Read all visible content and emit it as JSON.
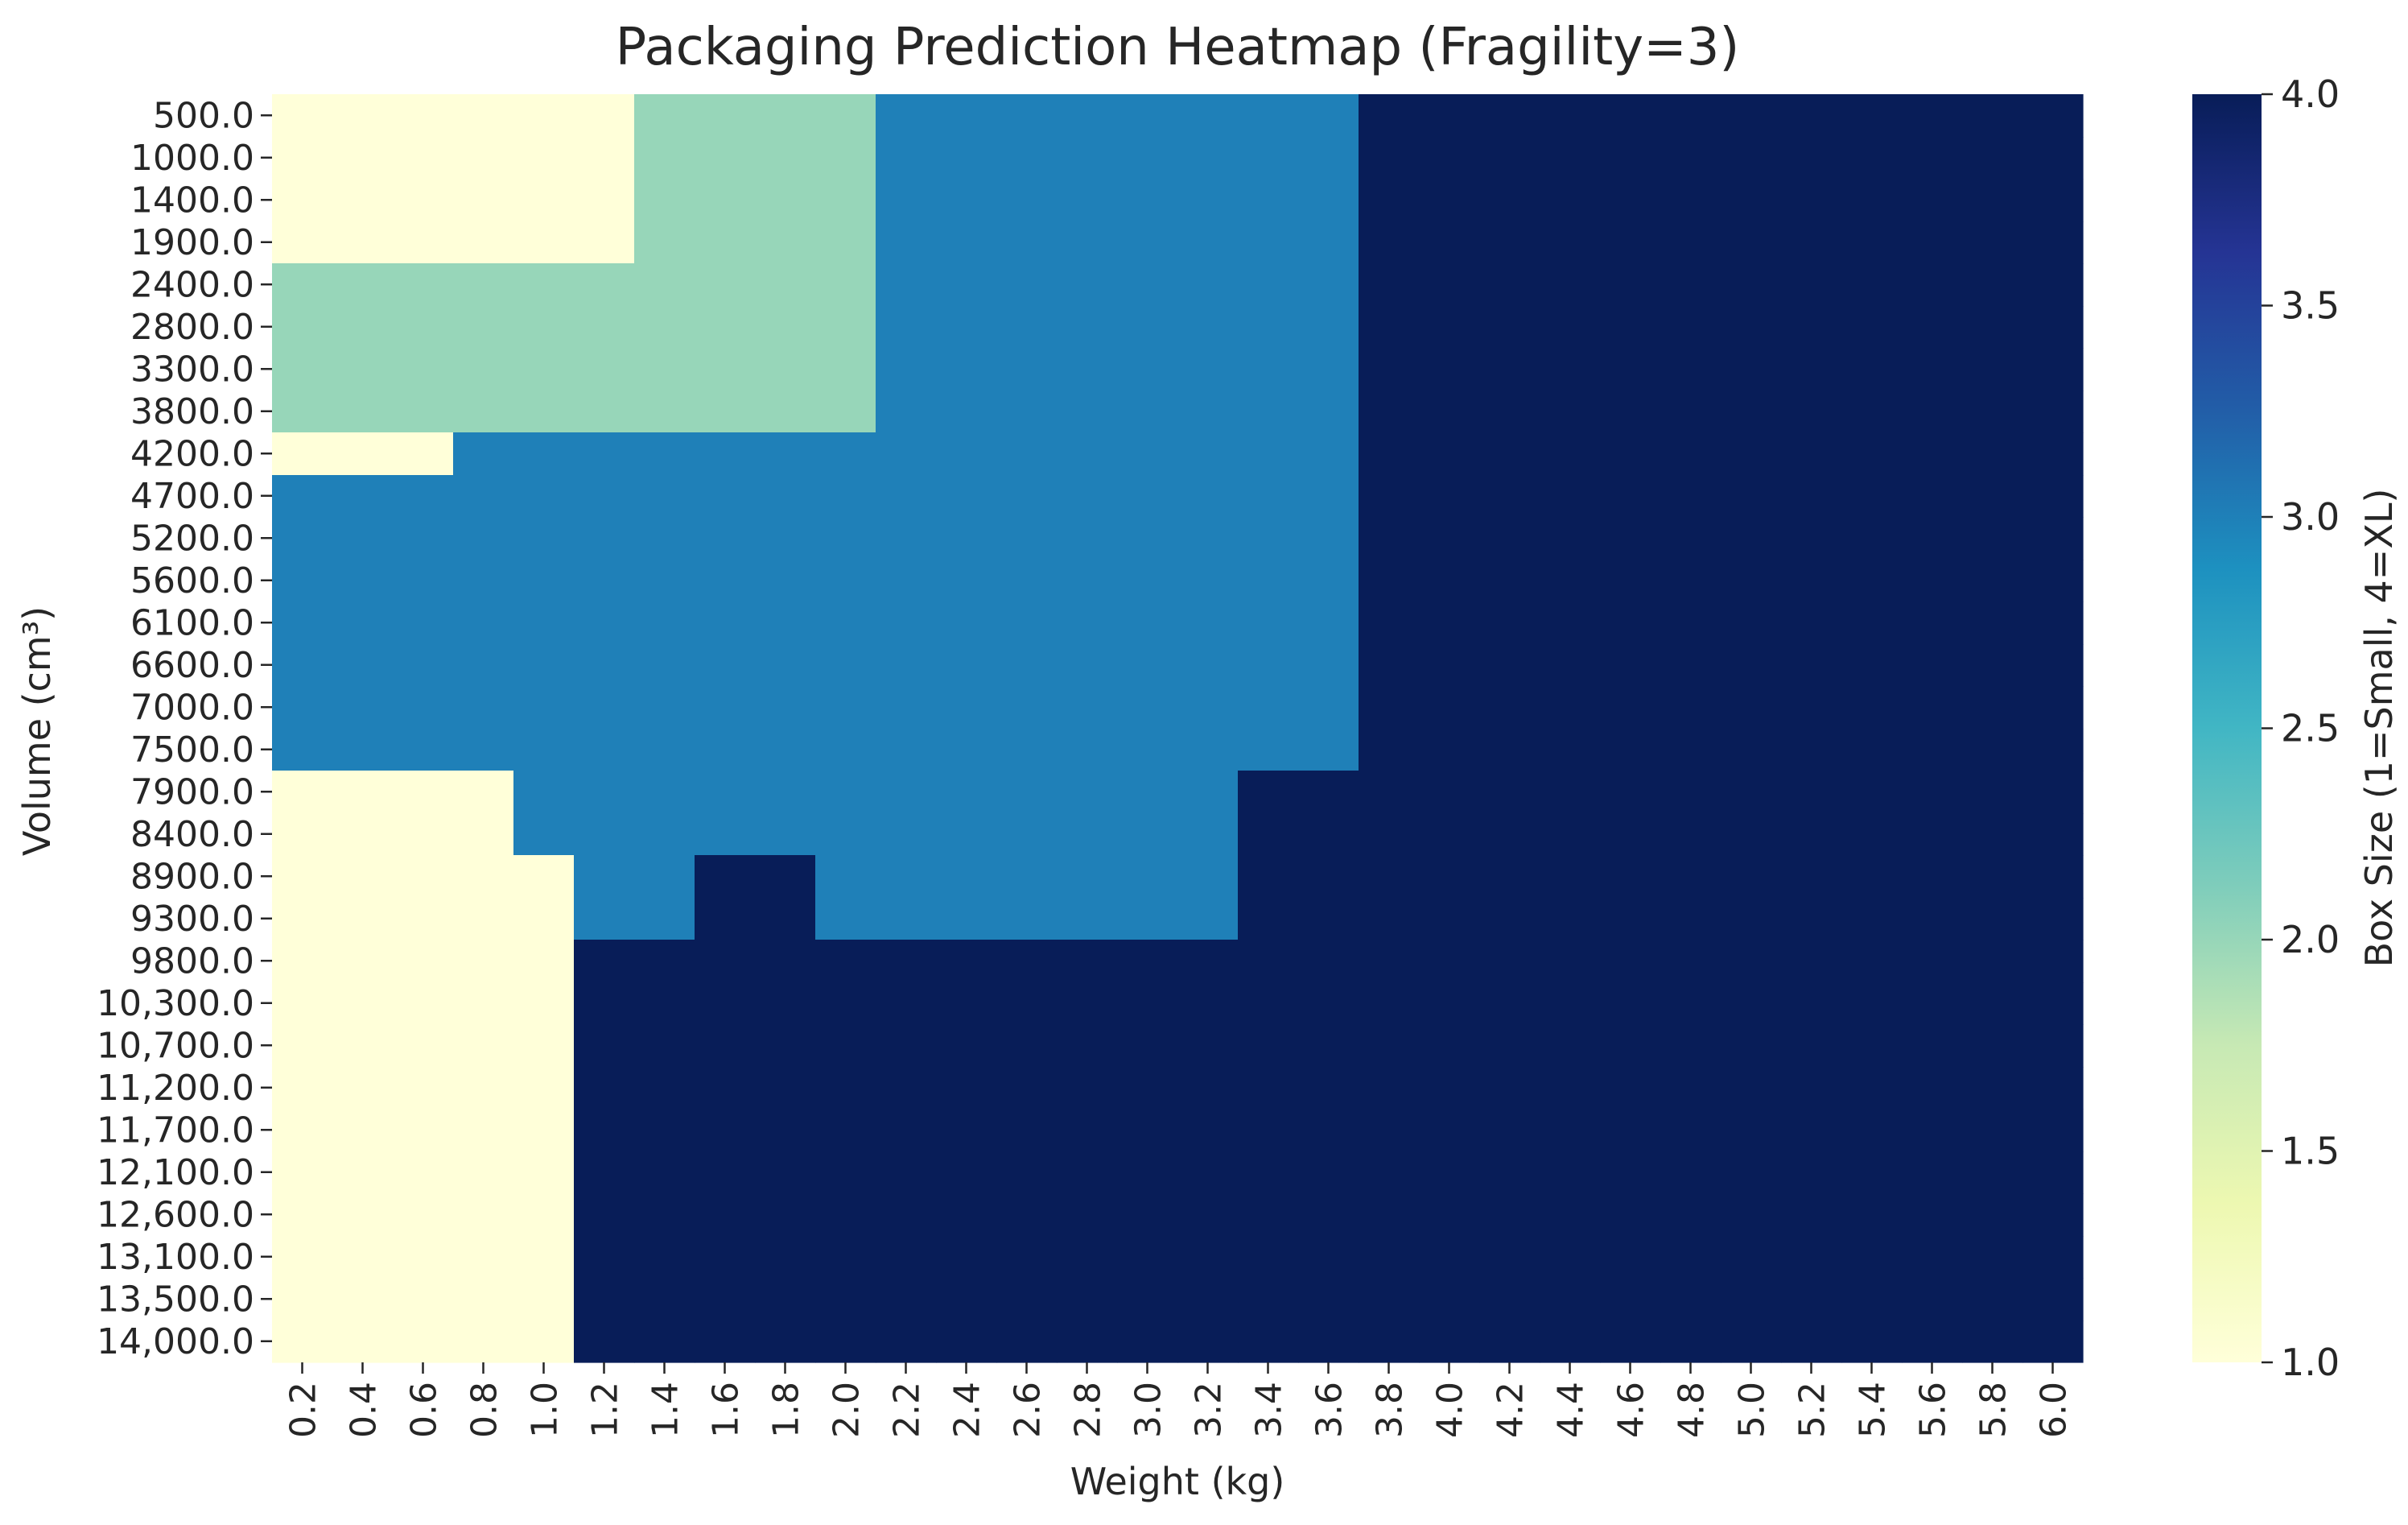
{
  "chart_data": {
    "type": "heatmap",
    "title": "Packaging Prediction Heatmap (Fragility=3)",
    "xlabel": "Weight (kg)",
    "ylabel": "Volume (cm³)",
    "colorbar_label": "Box Size (1=Small, 4=XL)",
    "colorbar_ticks": [
      "1.0",
      "1.5",
      "2.0",
      "2.5",
      "3.0",
      "3.5",
      "4.0"
    ],
    "color_range": [
      1.0,
      4.0
    ],
    "colormap": "YlGnBu",
    "colormap_stops": [
      "#ffffd9",
      "#edf8b1",
      "#c7e9b4",
      "#7fcdbb",
      "#41b6c4",
      "#1d91c0",
      "#225ea8",
      "#253494",
      "#081d58"
    ],
    "x_values": [
      0.2,
      0.4,
      0.6,
      0.8,
      1.0,
      1.2,
      1.4,
      1.6,
      1.8,
      2.0,
      2.2,
      2.4,
      2.6,
      2.8,
      3.0,
      3.2,
      3.4,
      3.6,
      3.8,
      4.0,
      4.2,
      4.4,
      4.6,
      4.8,
      5.0,
      5.2,
      5.4,
      5.6,
      5.8,
      6.0
    ],
    "x_tick_labels": [
      "0.2",
      "0.4",
      "0.6",
      "0.8",
      "1.0",
      "1.2",
      "1.4",
      "1.6",
      "1.8",
      "2.0",
      "2.2",
      "2.4",
      "2.6",
      "2.8",
      "3.0",
      "3.2",
      "3.4",
      "3.6",
      "3.8",
      "4.0",
      "4.2",
      "4.4",
      "4.6",
      "4.8",
      "5.0",
      "5.2",
      "5.4",
      "5.6",
      "5.8",
      "6.0"
    ],
    "y_values": [
      500,
      1000,
      1400,
      1900,
      2400,
      2800,
      3300,
      3800,
      4200,
      4700,
      5200,
      5600,
      6100,
      6600,
      7000,
      7500,
      7900,
      8400,
      8900,
      9300,
      9800,
      10300,
      10700,
      11200,
      11700,
      12100,
      12600,
      13100,
      13500,
      14000
    ],
    "y_tick_labels": [
      "500.0",
      "1000.0",
      "1400.0",
      "1900.0",
      "2400.0",
      "2800.0",
      "3300.0",
      "3800.0",
      "4200.0",
      "4700.0",
      "5200.0",
      "5600.0",
      "6100.0",
      "6600.0",
      "7000.0",
      "7500.0",
      "7900.0",
      "8400.0",
      "8900.0",
      "9300.0",
      "9800.0",
      "10,300.0",
      "10,700.0",
      "11,200.0",
      "11,700.0",
      "12,100.0",
      "12,600.0",
      "13,100.0",
      "13,500.0",
      "14,000.0"
    ],
    "values": [
      [
        1,
        1,
        1,
        1,
        1,
        1,
        2,
        2,
        2,
        2,
        3,
        3,
        3,
        3,
        3,
        3,
        3,
        3,
        4,
        4,
        4,
        4,
        4,
        4,
        4,
        4,
        4,
        4,
        4,
        4
      ],
      [
        1,
        1,
        1,
        1,
        1,
        1,
        2,
        2,
        2,
        2,
        3,
        3,
        3,
        3,
        3,
        3,
        3,
        3,
        4,
        4,
        4,
        4,
        4,
        4,
        4,
        4,
        4,
        4,
        4,
        4
      ],
      [
        1,
        1,
        1,
        1,
        1,
        1,
        2,
        2,
        2,
        2,
        3,
        3,
        3,
        3,
        3,
        3,
        3,
        3,
        4,
        4,
        4,
        4,
        4,
        4,
        4,
        4,
        4,
        4,
        4,
        4
      ],
      [
        1,
        1,
        1,
        1,
        1,
        1,
        2,
        2,
        2,
        2,
        3,
        3,
        3,
        3,
        3,
        3,
        3,
        3,
        4,
        4,
        4,
        4,
        4,
        4,
        4,
        4,
        4,
        4,
        4,
        4
      ],
      [
        2,
        2,
        2,
        2,
        2,
        2,
        2,
        2,
        2,
        2,
        3,
        3,
        3,
        3,
        3,
        3,
        3,
        3,
        4,
        4,
        4,
        4,
        4,
        4,
        4,
        4,
        4,
        4,
        4,
        4
      ],
      [
        2,
        2,
        2,
        2,
        2,
        2,
        2,
        2,
        2,
        2,
        3,
        3,
        3,
        3,
        3,
        3,
        3,
        3,
        4,
        4,
        4,
        4,
        4,
        4,
        4,
        4,
        4,
        4,
        4,
        4
      ],
      [
        2,
        2,
        2,
        2,
        2,
        2,
        2,
        2,
        2,
        2,
        3,
        3,
        3,
        3,
        3,
        3,
        3,
        3,
        4,
        4,
        4,
        4,
        4,
        4,
        4,
        4,
        4,
        4,
        4,
        4
      ],
      [
        2,
        2,
        2,
        2,
        2,
        2,
        2,
        2,
        2,
        2,
        3,
        3,
        3,
        3,
        3,
        3,
        3,
        3,
        4,
        4,
        4,
        4,
        4,
        4,
        4,
        4,
        4,
        4,
        4,
        4
      ],
      [
        1,
        1,
        1,
        3,
        3,
        3,
        3,
        3,
        3,
        3,
        3,
        3,
        3,
        3,
        3,
        3,
        3,
        3,
        4,
        4,
        4,
        4,
        4,
        4,
        4,
        4,
        4,
        4,
        4,
        4
      ],
      [
        3,
        3,
        3,
        3,
        3,
        3,
        3,
        3,
        3,
        3,
        3,
        3,
        3,
        3,
        3,
        3,
        3,
        3,
        4,
        4,
        4,
        4,
        4,
        4,
        4,
        4,
        4,
        4,
        4,
        4
      ],
      [
        3,
        3,
        3,
        3,
        3,
        3,
        3,
        3,
        3,
        3,
        3,
        3,
        3,
        3,
        3,
        3,
        3,
        3,
        4,
        4,
        4,
        4,
        4,
        4,
        4,
        4,
        4,
        4,
        4,
        4
      ],
      [
        3,
        3,
        3,
        3,
        3,
        3,
        3,
        3,
        3,
        3,
        3,
        3,
        3,
        3,
        3,
        3,
        3,
        3,
        4,
        4,
        4,
        4,
        4,
        4,
        4,
        4,
        4,
        4,
        4,
        4
      ],
      [
        3,
        3,
        3,
        3,
        3,
        3,
        3,
        3,
        3,
        3,
        3,
        3,
        3,
        3,
        3,
        3,
        3,
        3,
        4,
        4,
        4,
        4,
        4,
        4,
        4,
        4,
        4,
        4,
        4,
        4
      ],
      [
        3,
        3,
        3,
        3,
        3,
        3,
        3,
        3,
        3,
        3,
        3,
        3,
        3,
        3,
        3,
        3,
        3,
        3,
        4,
        4,
        4,
        4,
        4,
        4,
        4,
        4,
        4,
        4,
        4,
        4
      ],
      [
        3,
        3,
        3,
        3,
        3,
        3,
        3,
        3,
        3,
        3,
        3,
        3,
        3,
        3,
        3,
        3,
        3,
        3,
        4,
        4,
        4,
        4,
        4,
        4,
        4,
        4,
        4,
        4,
        4,
        4
      ],
      [
        3,
        3,
        3,
        3,
        3,
        3,
        3,
        3,
        3,
        3,
        3,
        3,
        3,
        3,
        3,
        3,
        3,
        3,
        4,
        4,
        4,
        4,
        4,
        4,
        4,
        4,
        4,
        4,
        4,
        4
      ],
      [
        1,
        1,
        1,
        1,
        3,
        3,
        3,
        3,
        3,
        3,
        3,
        3,
        3,
        3,
        3,
        3,
        4,
        4,
        4,
        4,
        4,
        4,
        4,
        4,
        4,
        4,
        4,
        4,
        4,
        4
      ],
      [
        1,
        1,
        1,
        1,
        3,
        3,
        3,
        3,
        3,
        3,
        3,
        3,
        3,
        3,
        3,
        3,
        4,
        4,
        4,
        4,
        4,
        4,
        4,
        4,
        4,
        4,
        4,
        4,
        4,
        4
      ],
      [
        1,
        1,
        1,
        1,
        1,
        3,
        3,
        4,
        4,
        3,
        3,
        3,
        3,
        3,
        3,
        3,
        4,
        4,
        4,
        4,
        4,
        4,
        4,
        4,
        4,
        4,
        4,
        4,
        4,
        4
      ],
      [
        1,
        1,
        1,
        1,
        1,
        3,
        3,
        4,
        4,
        3,
        3,
        3,
        3,
        3,
        3,
        3,
        4,
        4,
        4,
        4,
        4,
        4,
        4,
        4,
        4,
        4,
        4,
        4,
        4,
        4
      ],
      [
        1,
        1,
        1,
        1,
        1,
        4,
        4,
        4,
        4,
        4,
        4,
        4,
        4,
        4,
        4,
        4,
        4,
        4,
        4,
        4,
        4,
        4,
        4,
        4,
        4,
        4,
        4,
        4,
        4,
        4
      ],
      [
        1,
        1,
        1,
        1,
        1,
        4,
        4,
        4,
        4,
        4,
        4,
        4,
        4,
        4,
        4,
        4,
        4,
        4,
        4,
        4,
        4,
        4,
        4,
        4,
        4,
        4,
        4,
        4,
        4,
        4
      ],
      [
        1,
        1,
        1,
        1,
        1,
        4,
        4,
        4,
        4,
        4,
        4,
        4,
        4,
        4,
        4,
        4,
        4,
        4,
        4,
        4,
        4,
        4,
        4,
        4,
        4,
        4,
        4,
        4,
        4,
        4
      ],
      [
        1,
        1,
        1,
        1,
        1,
        4,
        4,
        4,
        4,
        4,
        4,
        4,
        4,
        4,
        4,
        4,
        4,
        4,
        4,
        4,
        4,
        4,
        4,
        4,
        4,
        4,
        4,
        4,
        4,
        4
      ],
      [
        1,
        1,
        1,
        1,
        1,
        4,
        4,
        4,
        4,
        4,
        4,
        4,
        4,
        4,
        4,
        4,
        4,
        4,
        4,
        4,
        4,
        4,
        4,
        4,
        4,
        4,
        4,
        4,
        4,
        4
      ],
      [
        1,
        1,
        1,
        1,
        1,
        4,
        4,
        4,
        4,
        4,
        4,
        4,
        4,
        4,
        4,
        4,
        4,
        4,
        4,
        4,
        4,
        4,
        4,
        4,
        4,
        4,
        4,
        4,
        4,
        4
      ],
      [
        1,
        1,
        1,
        1,
        1,
        4,
        4,
        4,
        4,
        4,
        4,
        4,
        4,
        4,
        4,
        4,
        4,
        4,
        4,
        4,
        4,
        4,
        4,
        4,
        4,
        4,
        4,
        4,
        4,
        4
      ],
      [
        1,
        1,
        1,
        1,
        1,
        4,
        4,
        4,
        4,
        4,
        4,
        4,
        4,
        4,
        4,
        4,
        4,
        4,
        4,
        4,
        4,
        4,
        4,
        4,
        4,
        4,
        4,
        4,
        4,
        4
      ],
      [
        1,
        1,
        1,
        1,
        1,
        4,
        4,
        4,
        4,
        4,
        4,
        4,
        4,
        4,
        4,
        4,
        4,
        4,
        4,
        4,
        4,
        4,
        4,
        4,
        4,
        4,
        4,
        4,
        4,
        4
      ],
      [
        1,
        1,
        1,
        1,
        1,
        4,
        4,
        4,
        4,
        4,
        4,
        4,
        4,
        4,
        4,
        4,
        4,
        4,
        4,
        4,
        4,
        4,
        4,
        4,
        4,
        4,
        4,
        4,
        4,
        4
      ]
    ]
  }
}
